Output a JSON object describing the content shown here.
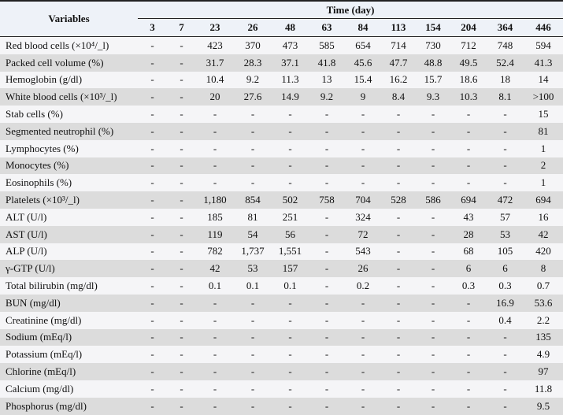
{
  "header": {
    "variables_label": "Variables",
    "time_label": "Time (day)",
    "days": [
      "3",
      "7",
      "23",
      "26",
      "48",
      "63",
      "84",
      "113",
      "154",
      "204",
      "364",
      "446"
    ]
  },
  "rows": [
    {
      "label": "Red blood cells (×10⁴/_l)",
      "values": [
        "-",
        "-",
        "423",
        "370",
        "473",
        "585",
        "654",
        "714",
        "730",
        "712",
        "748",
        "594"
      ]
    },
    {
      "label": "Packed cell volume (%)",
      "values": [
        "-",
        "-",
        "31.7",
        "28.3",
        "37.1",
        "41.8",
        "45.6",
        "47.7",
        "48.8",
        "49.5",
        "52.4",
        "41.3"
      ]
    },
    {
      "label": "Hemoglobin (g/dl)",
      "values": [
        "-",
        "-",
        "10.4",
        "9.2",
        "11.3",
        "13",
        "15.4",
        "16.2",
        "15.7",
        "18.6",
        "18",
        "14"
      ]
    },
    {
      "label": "White blood cells (×10³/_l)",
      "values": [
        "-",
        "-",
        "20",
        "27.6",
        "14.9",
        "9.2",
        "9",
        "8.4",
        "9.3",
        "10.3",
        "8.1",
        ">100"
      ]
    },
    {
      "label": "Stab cells (%)",
      "values": [
        "-",
        "-",
        "-",
        "-",
        "-",
        "-",
        "-",
        "-",
        "-",
        "-",
        "-",
        "15"
      ]
    },
    {
      "label": "Segmented neutrophil (%)",
      "values": [
        "-",
        "-",
        "-",
        "-",
        "-",
        "-",
        "-",
        "-",
        "-",
        "-",
        "-",
        "81"
      ]
    },
    {
      "label": "Lymphocytes (%)",
      "values": [
        "-",
        "-",
        "-",
        "-",
        "-",
        "-",
        "-",
        "-",
        "-",
        "-",
        "-",
        "1"
      ]
    },
    {
      "label": "Monocytes (%)",
      "values": [
        "-",
        "-",
        "-",
        "-",
        "-",
        "-",
        "-",
        "-",
        "-",
        "-",
        "-",
        "2"
      ]
    },
    {
      "label": "Eosinophils (%)",
      "values": [
        "-",
        "-",
        "-",
        "-",
        "-",
        "-",
        "-",
        "-",
        "-",
        "-",
        "-",
        "1"
      ]
    },
    {
      "label": "Platelets (×10³/_l)",
      "values": [
        "-",
        "-",
        "1,180",
        "854",
        "502",
        "758",
        "704",
        "528",
        "586",
        "694",
        "472",
        "694"
      ]
    },
    {
      "label": "ALT (U/l)",
      "values": [
        "-",
        "-",
        "185",
        "81",
        "251",
        "-",
        "324",
        "-",
        "-",
        "43",
        "57",
        "16"
      ]
    },
    {
      "label": "AST (U/l)",
      "values": [
        "-",
        "-",
        "119",
        "54",
        "56",
        "-",
        "72",
        "-",
        "-",
        "28",
        "53",
        "42"
      ]
    },
    {
      "label": "ALP (U/l)",
      "values": [
        "-",
        "-",
        "782",
        "1,737",
        "1,551",
        "-",
        "543",
        "-",
        "-",
        "68",
        "105",
        "420"
      ]
    },
    {
      "label": "γ-GTP (U/l)",
      "values": [
        "-",
        "-",
        "42",
        "53",
        "157",
        "-",
        "26",
        "-",
        "-",
        "6",
        "6",
        "8"
      ]
    },
    {
      "label": "Total bilirubin (mg/dl)",
      "values": [
        "-",
        "-",
        "0.1",
        "0.1",
        "0.1",
        "-",
        "0.2",
        "-",
        "-",
        "0.3",
        "0.3",
        "0.7"
      ]
    },
    {
      "label": "BUN (mg/dl)",
      "values": [
        "-",
        "-",
        "-",
        "-",
        "-",
        "-",
        "-",
        "-",
        "-",
        "-",
        "16.9",
        "53.6"
      ]
    },
    {
      "label": "Creatinine (mg/dl)",
      "values": [
        "-",
        "-",
        "-",
        "-",
        "-",
        "-",
        "-",
        "-",
        "-",
        "-",
        "0.4",
        "2.2"
      ]
    },
    {
      "label": "Sodium (mEq/l)",
      "values": [
        "-",
        "-",
        "-",
        "-",
        "-",
        "-",
        "-",
        "-",
        "-",
        "-",
        "-",
        "135"
      ]
    },
    {
      "label": "Potassium (mEq/l)",
      "values": [
        "-",
        "-",
        "-",
        "-",
        "-",
        "-",
        "-",
        "-",
        "-",
        "-",
        "-",
        "4.9"
      ]
    },
    {
      "label": "Chlorine (mEq/l)",
      "values": [
        "-",
        "-",
        "-",
        "-",
        "-",
        "-",
        "-",
        "-",
        "-",
        "-",
        "-",
        "97"
      ]
    },
    {
      "label": "Calcium (mg/dl)",
      "values": [
        "-",
        "-",
        "-",
        "-",
        "-",
        "-",
        "-",
        "-",
        "-",
        "-",
        "-",
        "11.8"
      ]
    },
    {
      "label": "Phosphorus (mg/dl)",
      "values": [
        "-",
        "-",
        "-",
        "-",
        "-",
        "-",
        "-",
        "-",
        "-",
        "-",
        "-",
        "9.5"
      ]
    }
  ]
}
